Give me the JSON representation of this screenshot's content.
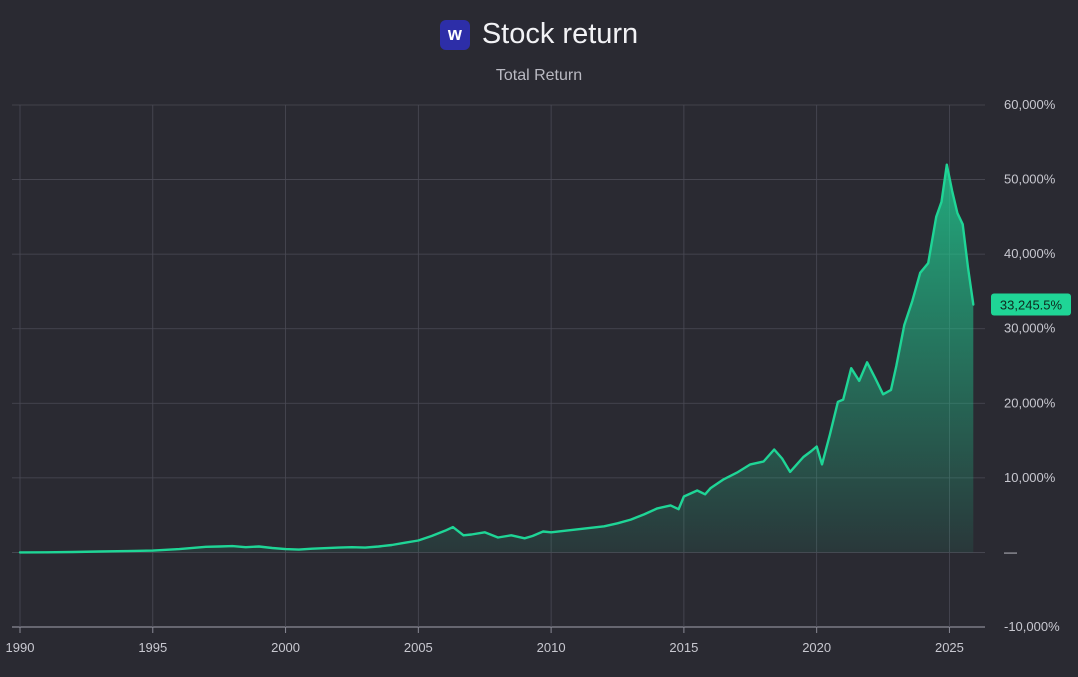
{
  "header": {
    "logo_letter": "w",
    "title": "Stock return",
    "subtitle": "Total Return"
  },
  "colors": {
    "background": "#2a2a32",
    "line": "#1fd596",
    "grid": "#4a4a55",
    "badge": "#1fd596",
    "logo": "#2d2ea8"
  },
  "chart_data": {
    "type": "area",
    "title": "Stock return",
    "subtitle": "Total Return",
    "xlabel": "",
    "ylabel": "",
    "y_unit": "%",
    "xlim": [
      1990,
      2026
    ],
    "ylim": [
      -10000,
      60000
    ],
    "x_ticks": [
      "1990",
      "1995",
      "2000",
      "2005",
      "2010",
      "2015",
      "2020",
      "2025"
    ],
    "y_ticks": [
      "60,000%",
      "50,000%",
      "40,000%",
      "30,000%",
      "20,000%",
      "10,000%",
      "—",
      "-10,000%"
    ],
    "grid": true,
    "legend": "none",
    "last_value_label": "33,245.5%",
    "series": [
      {
        "x": [
          1990.0,
          1991.0,
          1992.0,
          1993.0,
          1994.0,
          1995.0,
          1996.0,
          1997.0,
          1997.5,
          1998.0,
          1998.5,
          1999.0,
          1999.5,
          2000.0,
          2000.5,
          2001.0,
          2002.0,
          2002.5,
          2003.0,
          2003.5,
          2004.0,
          2004.5,
          2005.0,
          2005.5,
          2006.0,
          2006.3,
          2006.7,
          2007.0,
          2007.5,
          2008.0,
          2008.5,
          2009.0,
          2009.3,
          2009.7,
          2010.0,
          2010.5,
          2011.0,
          2011.5,
          2012.0,
          2012.5,
          2013.0,
          2013.5,
          2014.0,
          2014.5,
          2014.8,
          2015.0,
          2015.5,
          2015.8,
          2016.0,
          2016.5,
          2017.0,
          2017.5,
          2018.0,
          2018.4,
          2018.7,
          2019.0,
          2019.5,
          2019.8,
          2020.0,
          2020.2,
          2020.5,
          2020.8,
          2021.0,
          2021.3,
          2021.6,
          2021.9,
          2022.2,
          2022.5,
          2022.8,
          2023.0,
          2023.3,
          2023.6,
          2023.9,
          2024.2,
          2024.5,
          2024.7,
          2024.9,
          2025.1,
          2025.3,
          2025.5,
          2025.7,
          2025.9
        ],
        "y": [
          0,
          20,
          60,
          120,
          180,
          250,
          450,
          750,
          800,
          850,
          700,
          800,
          600,
          450,
          380,
          500,
          650,
          700,
          650,
          800,
          1000,
          1300,
          1600,
          2200,
          2900,
          3400,
          2300,
          2400,
          2700,
          2000,
          2300,
          1900,
          2200,
          2800,
          2700,
          2900,
          3100,
          3300,
          3500,
          3900,
          4400,
          5100,
          5900,
          6300,
          5800,
          7500,
          8300,
          7800,
          8600,
          9800,
          10700,
          11800,
          12200,
          13800,
          12600,
          10800,
          12800,
          13600,
          14200,
          11800,
          15800,
          20200,
          20500,
          24700,
          23000,
          25500,
          23400,
          21200,
          21800,
          25000,
          30500,
          33700,
          37500,
          38800,
          45000,
          47000,
          52000,
          48500,
          45500,
          44000,
          38200,
          33245
        ]
      }
    ]
  }
}
